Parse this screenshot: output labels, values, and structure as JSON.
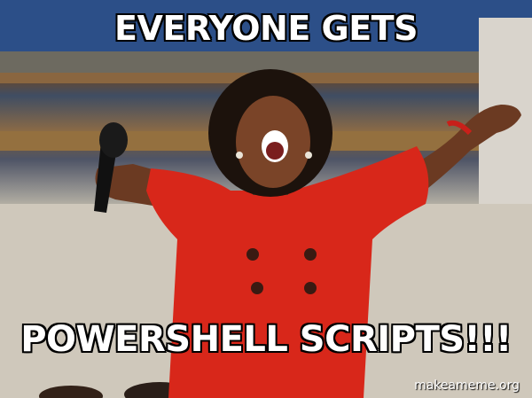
{
  "meme": {
    "top_text": "EVERYONE GETS",
    "bottom_text": "POWERSHELL SCRIPTS!!!",
    "watermark": "makeameme.org"
  },
  "colors": {
    "dress": "#d8271a",
    "skin": "#6b3a22",
    "hair": "#1c120c",
    "caption": "#ffffff"
  }
}
